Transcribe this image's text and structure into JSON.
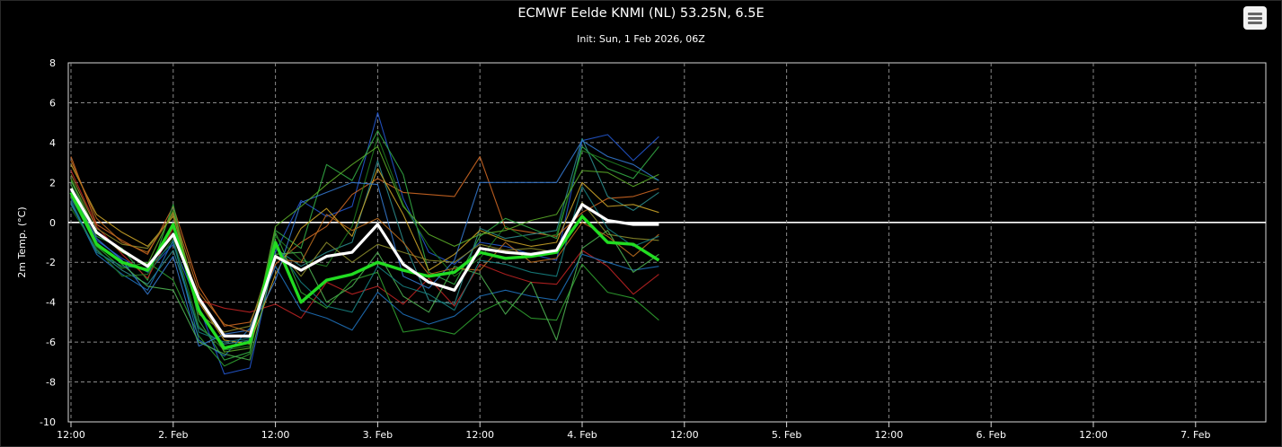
{
  "menu_icon": "hamburger-menu-icon",
  "chart_data": {
    "type": "line",
    "title": "ECMWF Eelde KNMI (NL) 53.25N, 6.5E",
    "subtitle": "Init: Sun, 1 Feb 2026, 06Z",
    "ylabel": "2m Temp. (°C)",
    "xlabel": "",
    "ylim": [
      -10,
      8
    ],
    "y_ticks": [
      -10,
      -8,
      -6,
      -4,
      -2,
      0,
      2,
      4,
      6,
      8
    ],
    "x_ticks": [
      "12:00",
      "2. Feb",
      "12:00",
      "3. Feb",
      "12:00",
      "4. Feb",
      "12:00",
      "5. Feb",
      "12:00",
      "6. Feb",
      "12:00",
      "7. Feb"
    ],
    "x_step_hours": 6,
    "x_start": "2026-02-01 12:00",
    "grid": true,
    "legend": "none",
    "series": [
      {
        "role": "main",
        "color": "#ffffff",
        "values": [
          1.7,
          -0.5,
          -1.4,
          -2.2,
          -0.6,
          -3.8,
          -5.7,
          -5.7,
          -1.7,
          -2.4,
          -1.7,
          -1.5,
          -0.1,
          -2.1,
          -3.0,
          -3.4,
          -1.3,
          -1.5,
          -1.6,
          -1.4,
          0.9,
          0.1,
          -0.1,
          -0.1
        ]
      },
      {
        "role": "mean",
        "color": "#22dd22",
        "values": [
          1.5,
          -1.1,
          -2.0,
          -2.4,
          -0.1,
          -4.4,
          -6.3,
          -6.0,
          -1.0,
          -4.0,
          -2.9,
          -2.6,
          -2.0,
          -2.4,
          -2.7,
          -2.5,
          -1.5,
          -1.8,
          -1.7,
          -1.5,
          0.3,
          -1.0,
          -1.1,
          -1.9
        ]
      },
      {
        "role": "member",
        "color": "#2255cc",
        "values": [
          1.2,
          -0.9,
          -1.8,
          -2.5,
          -1.1,
          -4.2,
          -7.6,
          -7.3,
          -1.5,
          1.1,
          0.3,
          0.8,
          5.5,
          1.2,
          -1.5,
          -2.1,
          -1.0,
          -1.2,
          -1.6,
          -1.9,
          4.1,
          4.4,
          3.1,
          4.3
        ]
      },
      {
        "role": "member",
        "color": "#cc6622",
        "values": [
          3.3,
          -0.1,
          -0.9,
          -1.6,
          0.8,
          -3.2,
          -5.2,
          -5.0,
          -2.1,
          -1.0,
          -0.2,
          1.4,
          2.2,
          1.5,
          1.4,
          1.3,
          3.3,
          -0.3,
          -0.5,
          -0.7,
          0.5,
          1.2,
          1.3,
          1.7
        ]
      },
      {
        "role": "member",
        "color": "#33aa44",
        "values": [
          2.1,
          -0.7,
          -1.3,
          -2.9,
          0.9,
          -4.9,
          -6.9,
          -6.5,
          -0.4,
          -1.3,
          2.9,
          2.1,
          4.6,
          2.4,
          -2.5,
          -3.1,
          -0.7,
          0.2,
          -0.3,
          -0.8,
          3.8,
          2.7,
          2.2,
          3.8
        ]
      },
      {
        "role": "member",
        "color": "#2a8a8a",
        "values": [
          0.9,
          -1.4,
          -2.4,
          -3.1,
          -1.4,
          -5.3,
          -6.1,
          -5.9,
          -1.3,
          -2.2,
          -1.5,
          -1.0,
          3.1,
          -0.9,
          -3.9,
          -4.1,
          -0.3,
          -0.8,
          -0.6,
          -0.4,
          4.2,
          1.3,
          0.6,
          1.5
        ]
      },
      {
        "role": "member",
        "color": "#bb2222",
        "values": [
          2.6,
          -0.2,
          -1.6,
          -2.8,
          -0.3,
          -3.9,
          -4.3,
          -4.5,
          -4.1,
          -4.8,
          -3.0,
          -3.6,
          -3.2,
          -4.1,
          -2.8,
          -4.2,
          -2.1,
          -2.6,
          -3.0,
          -3.1,
          -1.4,
          -2.2,
          -3.6,
          -2.6
        ]
      },
      {
        "role": "member",
        "color": "#2f9e2f",
        "values": [
          1.3,
          -1.2,
          -2.3,
          -2.0,
          -2.9,
          -5.7,
          -7.2,
          -6.6,
          -0.5,
          -3.5,
          -4.3,
          -2.9,
          -2.5,
          -5.5,
          -5.3,
          -5.6,
          -4.5,
          -3.9,
          -4.8,
          -4.9,
          -2.1,
          -3.5,
          -3.8,
          -4.9
        ]
      },
      {
        "role": "member",
        "color": "#c9a227",
        "values": [
          2.9,
          0.4,
          -0.5,
          -1.2,
          0.3,
          -4.0,
          -5.9,
          -6.1,
          -2.6,
          -0.3,
          0.7,
          -0.7,
          2.7,
          0.4,
          -2.4,
          -1.6,
          -0.4,
          -0.9,
          -1.2,
          -1.0,
          2.0,
          0.8,
          0.9,
          0.5
        ]
      },
      {
        "role": "member",
        "color": "#1e6fb8",
        "values": [
          1.0,
          -1.6,
          -2.6,
          -3.4,
          -0.9,
          -5.9,
          -6.7,
          -5.3,
          -2.2,
          -4.4,
          -4.8,
          -5.4,
          -3.5,
          -4.6,
          -5.1,
          -4.7,
          -3.7,
          -3.4,
          -3.7,
          -3.9,
          -1.6,
          -2.0,
          -2.4,
          -2.2
        ]
      },
      {
        "role": "member",
        "color": "#1f7a1f",
        "values": [
          0.7,
          -1.3,
          -2.7,
          -2.6,
          -0.8,
          -5.2,
          -6.4,
          -6.2,
          -0.7,
          -1.9,
          -2.2,
          -0.2,
          4.3,
          0.9,
          -1.2,
          -2.7,
          -1.8,
          -0.2,
          -0.9,
          -0.6,
          3.6,
          3.1,
          2.6,
          2.1
        ]
      },
      {
        "role": "member",
        "color": "#8a8a2a",
        "values": [
          2.4,
          -0.3,
          -1.1,
          -1.3,
          0.4,
          -4.6,
          -5.5,
          -5.2,
          -1.2,
          -2.7,
          -1.0,
          -2.0,
          -1.1,
          -1.5,
          -1.9,
          -2.0,
          -1.1,
          -1.4,
          -1.3,
          -1.5,
          1.0,
          -0.6,
          -0.8,
          -0.9
        ]
      },
      {
        "role": "member",
        "color": "#3377cc",
        "values": [
          1.6,
          -0.8,
          -1.9,
          -3.6,
          -1.7,
          -6.2,
          -5.6,
          -5.4,
          -2.9,
          1.0,
          1.5,
          2.0,
          1.9,
          -2.7,
          -3.3,
          -1.9,
          2.0,
          2.0,
          2.0,
          2.0,
          4.1,
          3.3,
          2.9,
          2.1
        ]
      },
      {
        "role": "member",
        "color": "#4caf50",
        "values": [
          1.9,
          -1.0,
          -2.1,
          -3.2,
          -3.4,
          -6.0,
          -6.6,
          -6.9,
          -1.6,
          -1.5,
          -4.0,
          -3.2,
          -1.5,
          -3.7,
          -4.5,
          -2.2,
          -2.6,
          -4.6,
          -3.0,
          -5.9,
          -1.3,
          -0.4,
          -2.5,
          -1.6
        ]
      },
      {
        "role": "member",
        "color": "#b86a1e",
        "values": [
          3.1,
          0.2,
          -1.0,
          -1.5,
          0.5,
          -3.5,
          -5.1,
          -5.5,
          -1.8,
          -2.0,
          0.4,
          -0.4,
          0.2,
          -1.0,
          -2.6,
          -2.3,
          -2.4,
          -1.0,
          -2.0,
          -1.8,
          0.0,
          -0.7,
          -1.7,
          -0.6
        ]
      },
      {
        "role": "member",
        "color": "#167d7d",
        "values": [
          1.1,
          -1.5,
          -2.2,
          -2.3,
          -1.0,
          -5.5,
          -6.0,
          -5.8,
          -1.1,
          -3.0,
          -4.2,
          -4.5,
          -2.2,
          -3.2,
          -3.6,
          -4.4,
          -1.9,
          -2.1,
          -2.5,
          -2.7,
          1.8,
          -0.3,
          -1.2,
          -0.7
        ]
      },
      {
        "role": "member",
        "color": "#5aaa28",
        "values": [
          2.2,
          -0.5,
          -1.5,
          -2.1,
          0.6,
          -4.3,
          -6.5,
          -6.3,
          -0.2,
          0.8,
          1.9,
          2.9,
          3.8,
          0.8,
          -0.6,
          -1.2,
          -0.6,
          -0.4,
          0.1,
          0.4,
          2.6,
          2.5,
          1.8,
          2.4
        ]
      }
    ]
  }
}
